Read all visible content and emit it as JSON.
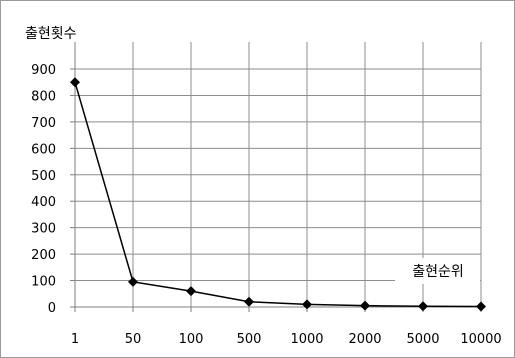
{
  "chart_data": {
    "type": "line",
    "title": "",
    "ylabel": "출현횟수",
    "xlabel": "출현순위",
    "categories": [
      "1",
      "50",
      "100",
      "500",
      "1000",
      "2000",
      "5000",
      "10000"
    ],
    "series": [
      {
        "values": [
          850,
          95,
          60,
          20,
          10,
          5,
          3,
          2
        ]
      }
    ],
    "ylim": [
      0,
      900
    ],
    "yticks": [
      "0",
      "100",
      "200",
      "300",
      "400",
      "500",
      "600",
      "700",
      "800",
      "900"
    ],
    "grid": true,
    "marker": "diamond",
    "line_color": "#000000"
  }
}
